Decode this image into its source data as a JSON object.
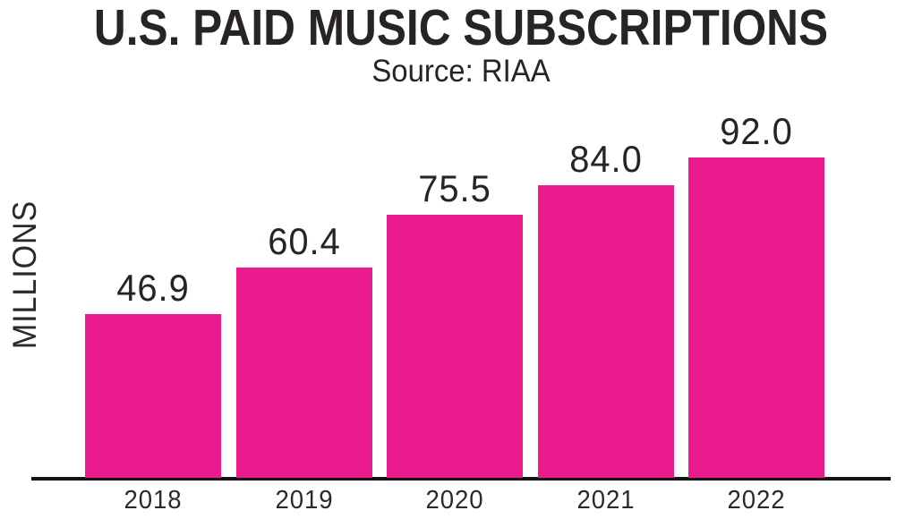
{
  "header": {
    "title": "U.S. PAID MUSIC SUBSCRIPTIONS",
    "subtitle": "Source: RIAA"
  },
  "chart_data": {
    "type": "bar",
    "title": "U.S. PAID MUSIC SUBSCRIPTIONS",
    "subtitle": "Source: RIAA",
    "categories": [
      "2018",
      "2019",
      "2020",
      "2021",
      "2022"
    ],
    "values": [
      46.9,
      60.4,
      75.5,
      84.0,
      92.0
    ],
    "value_labels": [
      "46.9",
      "60.4",
      "75.5",
      "84.0",
      "92.0"
    ],
    "series_name": "U.S. paid music subscriptions",
    "xlabel": "",
    "ylabel": "MILLIONS",
    "ylim": [
      0,
      100
    ],
    "grid": false,
    "legend": false,
    "bar_color": "#EB1A8D",
    "axis_color": "#141414",
    "text_color": "#282425"
  }
}
